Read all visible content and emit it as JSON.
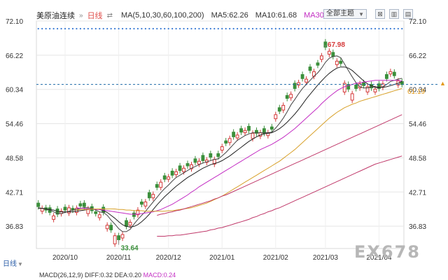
{
  "header": {
    "instrument": "美原油连续",
    "period": "日线",
    "ma_params": "MA(5,10,30,60,100,200)",
    "ma5": "MA5:62.26",
    "ma10": "MA10:61.68",
    "ma30": "MA30",
    "theme_button": "全部主题"
  },
  "bottom": {
    "period_tab": "日线",
    "macd_text": "MACD(26,12,9) DIFF:0.32 DEA:0.20",
    "macd_value": "MACD:0.24"
  },
  "watermark": "EX678",
  "current_price": "61.19",
  "colors": {
    "up": "#d53a3a",
    "down": "#3b8f3b",
    "ma5": "#444444",
    "ma10": "#222222",
    "ma30": "#c32cc3",
    "ma60": "#d8a12a",
    "ma100": "#c0396a",
    "ma200": "#c0396a",
    "grid": "#e5e5e5",
    "current": "#1f6aa8"
  },
  "chart_data": {
    "type": "candlestick",
    "x_tick_labels": [
      "2020/10",
      "2020/11",
      "2020/12",
      "2021/01",
      "2021/02",
      "2021/03",
      "2021/04"
    ],
    "y_tick_labels": [
      "72.10",
      "66.22",
      "60.34",
      "54.46",
      "48.58",
      "42.71",
      "36.83"
    ],
    "ylim": [
      33.0,
      72.1
    ],
    "annotations": {
      "high": "67.98",
      "low": "33.64"
    },
    "closes": [
      40.2,
      39.9,
      39.6,
      39.2,
      38.6,
      38.9,
      39.4,
      39.6,
      40.0,
      39.6,
      39.9,
      40.3,
      40.2,
      39.8,
      39.5,
      39.0,
      38.8,
      39.2,
      37.0,
      36.2,
      35.2,
      34.5,
      35.4,
      36.8,
      37.5,
      38.5,
      39.6,
      40.6,
      41.0,
      41.7,
      42.3,
      43.5,
      44.4,
      44.9,
      45.3,
      45.6,
      46.2,
      46.4,
      46.8,
      47.2,
      47.4,
      47.8,
      48.0,
      48.1,
      48.2,
      48.7,
      48.3,
      48.8,
      50.5,
      51.1,
      51.9,
      52.2,
      52.5,
      53.0,
      53.3,
      53.3,
      52.8,
      52.8,
      52.9,
      52.8,
      52.9,
      53.5,
      56.0,
      56.6,
      57.6,
      58.8,
      59.5,
      60.5,
      61.5,
      62.2,
      62.1,
      63.6,
      63.4,
      64.5,
      66.1,
      67.6,
      66.9,
      66.0,
      65.2,
      64.8,
      61.4,
      60.4,
      59.6,
      60.5,
      61.3,
      61.0,
      60.8,
      60.6,
      60.4,
      60.5,
      61.3,
      62.2,
      63.4,
      62.7,
      61.8,
      61.19
    ],
    "open_offsets": [
      0.6,
      -0.5,
      0.4,
      0.8,
      -0.6,
      0.9,
      -0.4,
      0.5,
      -0.9,
      0.3,
      -0.7,
      0.4,
      0.6,
      -0.8,
      0.7,
      0.3,
      -0.5,
      0.9,
      -0.6,
      0.8,
      -1.4,
      0.7,
      -0.6,
      1.0,
      -0.5,
      0.6,
      -0.8,
      0.4,
      -0.7,
      0.9,
      -0.6,
      0.5,
      -0.9,
      0.6,
      -0.4,
      0.7,
      -0.5,
      0.8,
      -0.6,
      0.4,
      -0.7,
      0.6,
      -0.5,
      0.9,
      -0.4,
      0.6,
      -0.8,
      0.5,
      -0.6,
      0.4,
      -0.7,
      0.8,
      -0.5,
      0.6,
      -0.4,
      0.7,
      -0.9,
      0.5,
      -0.6,
      0.8,
      -0.5,
      0.4,
      -0.7,
      0.6,
      -0.8,
      0.5,
      -0.6,
      0.9,
      -0.4,
      0.7,
      -0.5,
      0.6,
      -0.8,
      0.4,
      -0.6,
      0.9,
      -0.5,
      0.7,
      -0.6,
      0.4,
      -1.5,
      0.8,
      -1.1,
      0.6,
      -0.7,
      0.5,
      -0.9,
      0.6,
      -0.5,
      0.8,
      -0.6,
      0.7,
      -0.4,
      0.6,
      -0.7,
      0.5
    ],
    "series": [
      {
        "name": "MA5",
        "values": [
          40.0,
          39.9,
          39.8,
          39.6,
          39.3,
          39.0,
          39.0,
          39.2,
          39.4,
          39.6,
          39.7,
          39.9,
          40.0,
          40.0,
          39.9,
          39.6,
          39.3,
          39.2,
          38.7,
          37.9,
          37.2,
          36.4,
          35.9,
          35.9,
          36.3,
          37.2,
          38.0,
          38.7,
          39.4,
          40.2,
          41.0,
          41.8,
          42.6,
          43.3,
          43.9,
          44.6,
          45.2,
          45.6,
          46.0,
          46.4,
          46.8,
          47.1,
          47.4,
          47.7,
          47.9,
          48.1,
          48.3,
          48.4,
          48.9,
          49.5,
          50.2,
          50.9,
          51.6,
          52.0,
          52.4,
          52.7,
          52.9,
          52.9,
          52.9,
          52.9,
          52.9,
          53.0,
          53.7,
          54.5,
          55.4,
          56.5,
          57.7,
          58.6,
          59.6,
          60.5,
          61.2,
          61.9,
          62.6,
          63.2,
          64.0,
          65.0,
          65.7,
          66.0,
          66.1,
          65.8,
          64.7,
          63.6,
          62.5,
          61.5,
          60.8,
          60.6,
          60.6,
          60.8,
          60.7,
          60.6,
          60.8,
          61.2,
          61.7,
          61.9,
          62.1,
          62.26
        ]
      },
      {
        "name": "MA10",
        "values": [
          39.9,
          39.9,
          39.8,
          39.7,
          39.6,
          39.4,
          39.3,
          39.3,
          39.3,
          39.3,
          39.4,
          39.5,
          39.6,
          39.7,
          39.8,
          39.8,
          39.7,
          39.5,
          39.2,
          38.7,
          38.2,
          37.6,
          37.1,
          36.8,
          36.7,
          36.8,
          37.1,
          37.6,
          38.2,
          38.9,
          39.7,
          40.5,
          41.2,
          41.9,
          42.5,
          43.1,
          43.7,
          44.2,
          44.7,
          45.2,
          45.6,
          46.0,
          46.4,
          46.8,
          47.1,
          47.4,
          47.6,
          47.8,
          48.1,
          48.5,
          48.9,
          49.4,
          49.9,
          50.4,
          50.9,
          51.4,
          51.8,
          52.2,
          52.5,
          52.7,
          52.8,
          52.9,
          53.2,
          53.6,
          54.1,
          54.7,
          55.4,
          56.1,
          56.9,
          57.8,
          58.7,
          59.5,
          60.3,
          61.1,
          61.8,
          62.5,
          63.1,
          63.6,
          64.0,
          64.2,
          64.2,
          64.0,
          63.6,
          63.0,
          62.4,
          61.8,
          61.3,
          61.0,
          60.8,
          60.7,
          60.7,
          60.8,
          61.0,
          61.2,
          61.4,
          61.68
        ]
      },
      {
        "name": "MA30",
        "values": [
          null,
          null,
          null,
          null,
          null,
          null,
          null,
          null,
          null,
          null,
          40.0,
          39.9,
          39.9,
          39.8,
          39.8,
          39.7,
          39.7,
          39.6,
          39.5,
          39.4,
          39.3,
          39.2,
          39.1,
          39.0,
          38.9,
          38.9,
          38.9,
          39.0,
          39.1,
          39.2,
          39.3,
          39.5,
          39.7,
          40.0,
          40.3,
          40.6,
          41.0,
          41.4,
          41.8,
          42.2,
          42.7,
          43.1,
          43.6,
          44.0,
          44.4,
          44.8,
          45.2,
          45.6,
          46.0,
          46.4,
          46.8,
          47.2,
          47.6,
          48.0,
          48.4,
          48.8,
          49.2,
          49.6,
          50.0,
          50.3,
          50.6,
          50.9,
          51.3,
          51.7,
          52.1,
          52.6,
          53.1,
          53.6,
          54.2,
          54.8,
          55.4,
          56.0,
          56.6,
          57.2,
          57.9,
          58.5,
          59.1,
          59.6,
          60.1,
          60.5,
          60.8,
          61.0,
          61.2,
          61.4,
          61.5,
          61.6,
          61.7,
          61.8,
          61.9,
          61.9,
          61.9,
          61.9,
          61.9,
          61.9,
          61.9,
          61.8
        ]
      },
      {
        "name": "MA60",
        "values": [
          null,
          null,
          null,
          null,
          null,
          null,
          null,
          null,
          null,
          null,
          39.6,
          39.7,
          39.7,
          39.7,
          39.8,
          39.8,
          39.8,
          39.8,
          39.8,
          39.8,
          39.8,
          39.7,
          39.7,
          39.6,
          39.6,
          39.5,
          39.5,
          39.5,
          39.4,
          39.4,
          39.4,
          39.4,
          39.4,
          39.4,
          39.5,
          39.5,
          39.6,
          39.7,
          39.8,
          39.9,
          40.0,
          40.2,
          40.4,
          40.6,
          40.8,
          41.1,
          41.4,
          41.7,
          42.0,
          42.4,
          42.8,
          43.2,
          43.6,
          44.0,
          44.4,
          44.8,
          45.2,
          45.6,
          46.0,
          46.4,
          46.8,
          47.2,
          47.6,
          48.0,
          48.5,
          49.0,
          49.5,
          50.0,
          50.6,
          51.2,
          51.8,
          52.4,
          53.0,
          53.6,
          54.2,
          54.8,
          55.4,
          55.9,
          56.4,
          56.8,
          57.2,
          57.5,
          57.8,
          58.0,
          58.3,
          58.5,
          58.7,
          58.9,
          59.1,
          59.3,
          59.5,
          59.7,
          59.9,
          60.1,
          60.3,
          60.5
        ]
      },
      {
        "name": "MA100",
        "values": [
          null,
          null,
          null,
          null,
          null,
          null,
          null,
          null,
          null,
          null,
          null,
          null,
          null,
          null,
          null,
          null,
          null,
          null,
          null,
          null,
          null,
          null,
          null,
          null,
          null,
          null,
          null,
          null,
          null,
          null,
          null,
          38.7,
          38.9,
          39.0,
          39.2,
          39.3,
          39.5,
          39.6,
          39.8,
          40.0,
          40.2,
          40.4,
          40.6,
          40.8,
          41.0,
          41.2,
          41.5,
          41.7,
          42.0,
          42.2,
          42.5,
          42.8,
          43.1,
          43.4,
          43.7,
          44.0,
          44.3,
          44.6,
          44.9,
          45.2,
          45.5,
          45.8,
          46.1,
          46.4,
          46.7,
          47.0,
          47.3,
          47.6,
          47.9,
          48.2,
          48.5,
          48.8,
          49.1,
          49.4,
          49.7,
          50.0,
          50.3,
          50.6,
          50.9,
          51.2,
          51.5,
          51.8,
          52.1,
          52.4,
          52.7,
          53.0,
          53.3,
          53.6,
          53.9,
          54.2,
          54.5,
          54.8,
          55.1,
          55.4,
          55.7,
          56.0
        ]
      },
      {
        "name": "MA200",
        "values": [
          null,
          null,
          null,
          null,
          null,
          null,
          null,
          null,
          null,
          null,
          null,
          null,
          null,
          null,
          null,
          null,
          null,
          null,
          null,
          null,
          null,
          null,
          null,
          null,
          null,
          null,
          null,
          null,
          null,
          null,
          null,
          35.1,
          35.1,
          35.1,
          35.2,
          35.2,
          35.3,
          35.3,
          35.4,
          35.5,
          35.6,
          35.7,
          35.8,
          35.9,
          36.0,
          36.2,
          36.3,
          36.5,
          36.6,
          36.8,
          37.0,
          37.2,
          37.4,
          37.6,
          37.8,
          38.0,
          38.3,
          38.5,
          38.8,
          39.0,
          39.3,
          39.5,
          39.8,
          40.0,
          40.3,
          40.6,
          40.9,
          41.2,
          41.5,
          41.8,
          42.1,
          42.4,
          42.7,
          43.0,
          43.3,
          43.6,
          43.9,
          44.2,
          44.5,
          44.8,
          45.1,
          45.4,
          45.7,
          46.0,
          46.3,
          46.6,
          46.9,
          47.2,
          47.5,
          47.7,
          47.9,
          48.1,
          48.3,
          48.5,
          48.7,
          48.9
        ]
      }
    ]
  }
}
